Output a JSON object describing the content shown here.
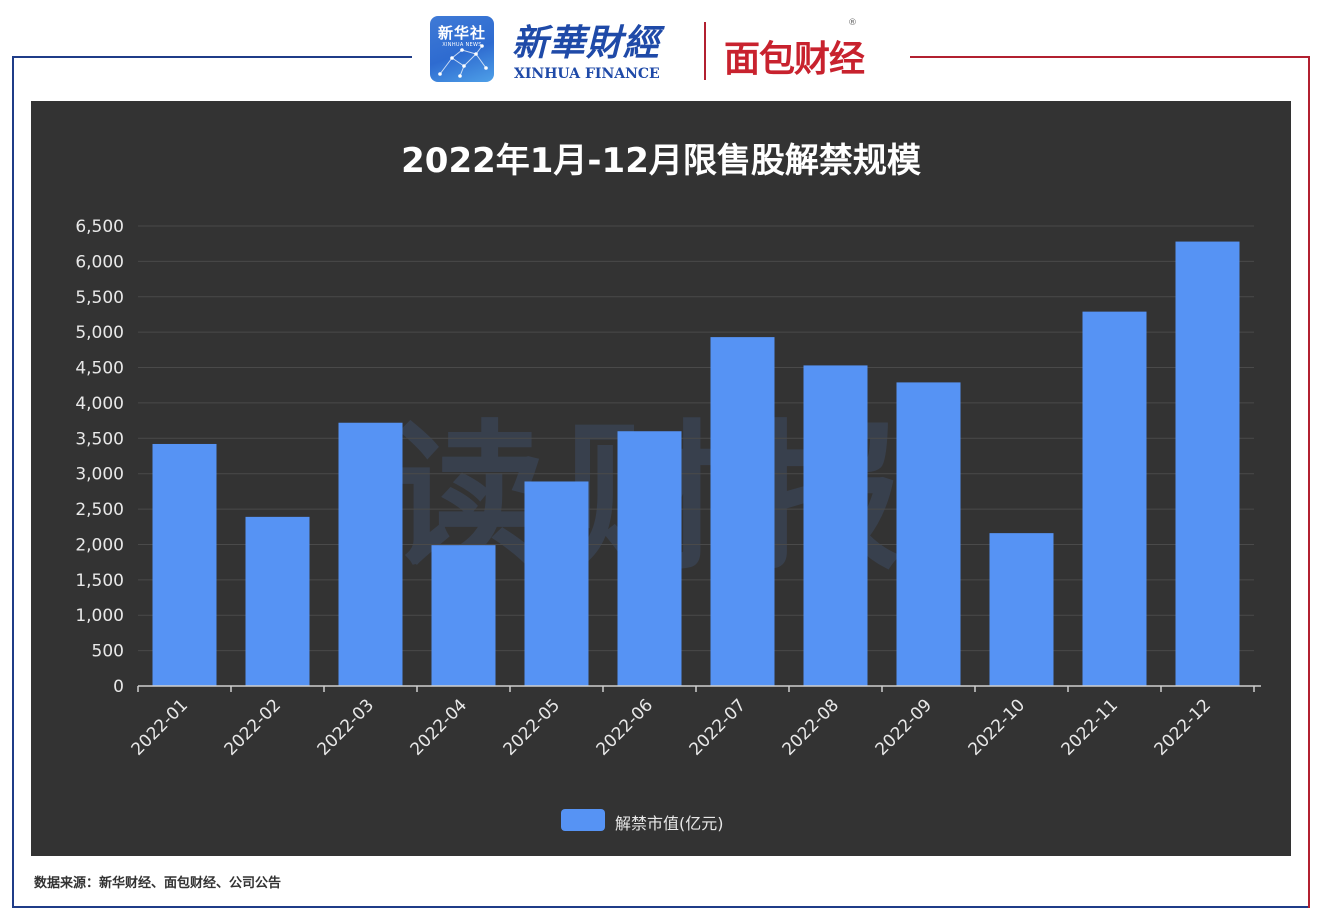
{
  "header": {
    "xinhua_news_cn": "新华社",
    "xinhua_news_en": "XINHUA NEWS",
    "xinhua_finance_cn": "新華財經",
    "xinhua_finance_en": "XINHUA FINANCE",
    "mianbao_logo": "面包财经",
    "registered_mark": "®"
  },
  "colors": {
    "frame_blue": "#1f3c88",
    "frame_red": "#b22030",
    "chart_bg": "#333333",
    "bar": "#5693f4",
    "gridline": "#4a4a4a",
    "axis_text": "#e8e8e8"
  },
  "watermark": "读财报",
  "chart_data": {
    "type": "bar",
    "title": "2022年1月-12月限售股解禁规模",
    "categories": [
      "2022-01",
      "2022-02",
      "2022-03",
      "2022-04",
      "2022-05",
      "2022-06",
      "2022-07",
      "2022-08",
      "2022-09",
      "2022-10",
      "2022-11",
      "2022-12"
    ],
    "series": [
      {
        "name": "解禁市值(亿元)",
        "values": [
          3420,
          2390,
          3720,
          1990,
          2890,
          3600,
          4930,
          4530,
          4290,
          2160,
          5290,
          6280
        ]
      }
    ],
    "ylim": [
      0,
      6500
    ],
    "yticks": [
      0,
      500,
      1000,
      1500,
      2000,
      2500,
      3000,
      3500,
      4000,
      4500,
      5000,
      5500,
      6000,
      6500
    ],
    "ytick_labels": [
      "0",
      "500",
      "1,000",
      "1,500",
      "2,000",
      "2,500",
      "3,000",
      "3,500",
      "4,000",
      "4,500",
      "5,000",
      "5,500",
      "6,000",
      "6,500"
    ],
    "xlabel": "",
    "ylabel": "",
    "grid": true,
    "legend": "bottom-center"
  },
  "source_note": "数据来源：新华财经、面包财经、公司公告"
}
